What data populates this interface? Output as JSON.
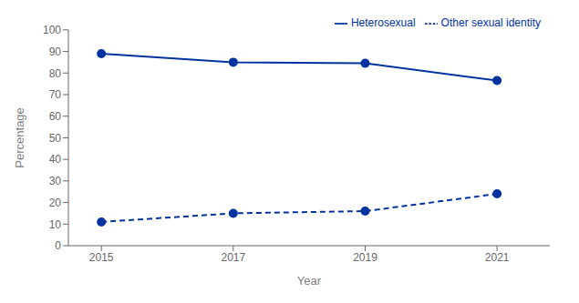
{
  "chart_data": {
    "type": "line",
    "x": [
      2015,
      2017,
      2019,
      2021
    ],
    "series": [
      {
        "name": "Heterosexual",
        "color": "#0033A0",
        "values": [
          89,
          85,
          84.5,
          76.5
        ],
        "line_style": "solid",
        "marker": "circle"
      },
      {
        "name": "Other sexual identity",
        "color": "#0033A0",
        "values": [
          11,
          15,
          16,
          24
        ],
        "line_style": "dashed",
        "marker": "circle"
      }
    ],
    "xlabel": "Year",
    "ylabel": "Percentage",
    "xlim": [
      2014.5,
      2021.8
    ],
    "xticks": [
      2015,
      2017,
      2019,
      2021
    ],
    "ylim": [
      0,
      100
    ],
    "yticks": [
      0,
      10,
      20,
      30,
      40,
      50,
      60,
      70,
      80,
      90,
      100
    ],
    "grid": false,
    "legend": "upper right"
  }
}
